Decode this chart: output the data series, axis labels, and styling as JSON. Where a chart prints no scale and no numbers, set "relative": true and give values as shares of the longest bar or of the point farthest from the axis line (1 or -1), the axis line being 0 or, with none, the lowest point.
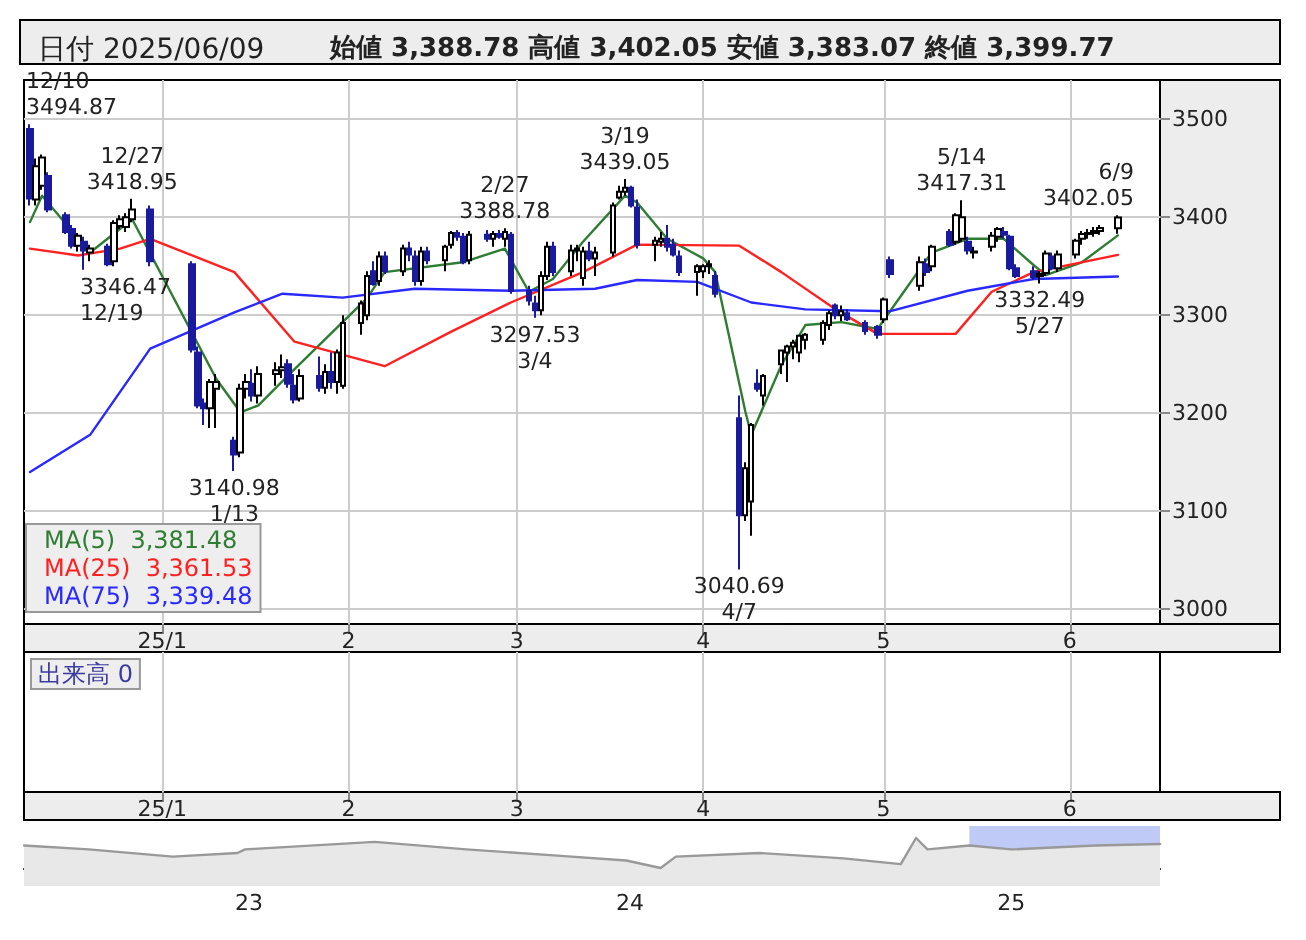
{
  "chart_data": [
    {
      "type": "candlestick",
      "title": "日付 2025/06/09",
      "subtitle": "始値 3,388.78 高値 3,402.05 安値 3,383.07 終値 3,399.77",
      "colors": [
        "#1a1a9c",
        "#ffffff",
        "#ffffff",
        "#1a1a9c",
        "#1a1a9c",
        "#1a1a9c",
        "#ffffff",
        "#1a1a9c",
        "#ffffff",
        "#1a1a9c",
        "#ffffff",
        "#ffffff",
        "#ffffff",
        "#ffffff",
        "#1a1a9c",
        "#1a1a9c",
        "#1a1a9c",
        "#1a1a9c",
        "#ffffff",
        "#ffffff",
        "#1a1a9c",
        "#ffffff",
        "#ffffff",
        "#1a1a9c",
        "#ffffff",
        "#ffffff",
        "#ffffff",
        "#1a1a9c",
        "#1a1a9c",
        "#ffffff",
        "#1a1a9c",
        "#ffffff",
        "#1a1a9c",
        "#ffffff",
        "#ffffff",
        "#ffffff",
        "#ffffff",
        "#1a1a9c",
        "#ffffff",
        "#1a1a9c",
        "#ffffff",
        "#1a1a9c",
        "#1a1a9c",
        "#ffffff",
        "#1a1a9c",
        "#ffffff",
        "#ffffff",
        "#1a1a9c",
        "#1a1a9c",
        "#ffffff",
        "#1a1a9c",
        "#ffffff",
        "#1a1a9c",
        "#ffffff",
        "#1a1a9c",
        "#1a1a9c",
        "#1a1a9c",
        "#ffffff",
        "#ffffff",
        "#1a1a9c",
        "#ffffff",
        "#ffffff",
        "#ffffff",
        "#1a1a9c",
        "#ffffff",
        "#ffffff",
        "#ffffff",
        "#ffffff",
        "#1a1a9c",
        "#1a1a9c",
        "#ffffff",
        "#ffffff",
        "#1a1a9c",
        "#1a1a9c",
        "#1a1a9c",
        "#ffffff",
        "#ffffff",
        "#ffffff",
        "#1a1a9c",
        "#1a1a9c",
        "#ffffff",
        "#ffffff",
        "#1a1a9c",
        "#ffffff",
        "#ffffff",
        "#ffffff",
        "#ffffff",
        "#ffffff",
        "#ffffff",
        "#ffffff",
        "#ffffff",
        "#1a1a9c",
        "#ffffff",
        "#1a1a9c",
        "#1a1a9c",
        "#1a1a9c",
        "#ffffff",
        "#1a1a9c",
        "#ffffff",
        "#1a1a9c",
        "#ffffff",
        "#1a1a9c",
        "#ffffff",
        "#ffffff",
        "#1a1a9c",
        "#ffffff",
        "#ffffff",
        "#ffffff",
        "#1a1a9c",
        "#1a1a9c",
        "#1a1a9c",
        "#1a1a9c",
        "#ffffff",
        "#ffffff",
        "#1a1a9c",
        "#ffffff",
        "#ffffff",
        "#ffffff",
        "#ffffff",
        "#ffffff",
        "#ffffff",
        "#ffffff"
      ],
      "x": [
        "2024-12-10",
        "2024-12-11",
        "2024-12-12",
        "2024-12-13",
        "2024-12-16",
        "2024-12-17",
        "2024-12-18",
        "2024-12-19",
        "2024-12-20",
        "2024-12-23",
        "2024-12-24",
        "2024-12-25",
        "2024-12-26",
        "2024-12-27",
        "2024-12-30",
        "2025-01-06",
        "2025-01-07",
        "2025-01-08",
        "2025-01-09",
        "2025-01-10",
        "2025-01-13",
        "2025-01-14",
        "2025-01-15",
        "2025-01-16",
        "2025-01-17",
        "2025-01-20",
        "2025-01-21",
        "2025-01-22",
        "2025-01-23",
        "2025-01-24",
        "2025-01-27",
        "2025-01-28",
        "2025-01-29",
        "2025-01-30",
        "2025-01-31",
        "2025-02-03",
        "2025-02-04",
        "2025-02-05",
        "2025-02-06",
        "2025-02-07",
        "2025-02-10",
        "2025-02-11",
        "2025-02-12",
        "2025-02-13",
        "2025-02-14",
        "2025-02-17",
        "2025-02-18",
        "2025-02-19",
        "2025-02-20",
        "2025-02-21",
        "2025-02-24",
        "2025-02-25",
        "2025-02-26",
        "2025-02-27",
        "2025-02-28",
        "2025-03-03",
        "2025-03-04",
        "2025-03-05",
        "2025-03-06",
        "2025-03-07",
        "2025-03-10",
        "2025-03-11",
        "2025-03-12",
        "2025-03-13",
        "2025-03-14",
        "2025-03-17",
        "2025-03-18",
        "2025-03-19",
        "2025-03-20",
        "2025-03-21",
        "2025-03-24",
        "2025-03-25",
        "2025-03-26",
        "2025-03-27",
        "2025-03-28",
        "2025-03-31",
        "2025-04-01",
        "2025-04-02",
        "2025-04-03",
        "2025-04-07",
        "2025-04-08",
        "2025-04-09",
        "2025-04-10",
        "2025-04-11",
        "2025-04-14",
        "2025-04-15",
        "2025-04-16",
        "2025-04-17",
        "2025-04-18",
        "2025-04-21",
        "2025-04-22",
        "2025-04-23",
        "2025-04-24",
        "2025-04-25",
        "2025-04-28",
        "2025-04-30",
        "2025-05-01",
        "2025-05-02",
        "2025-05-07",
        "2025-05-08",
        "2025-05-09",
        "2025-05-12",
        "2025-05-13",
        "2025-05-14",
        "2025-05-15",
        "2025-05-16",
        "2025-05-19",
        "2025-05-20",
        "2025-05-21",
        "2025-05-22",
        "2025-05-23",
        "2025-05-26",
        "2025-05-27",
        "2025-05-28",
        "2025-05-29",
        "2025-05-30",
        "2025-06-02",
        "2025-06-03",
        "2025-06-04",
        "2025-06-05",
        "2025-06-06",
        "2025-06-09"
      ],
      "ohlc": [
        [
          3490,
          3494.87,
          3412,
          3419
        ],
        [
          3418,
          3460,
          3412,
          3452
        ],
        [
          3432,
          3464,
          3428,
          3461
        ],
        [
          3442,
          3446,
          3405,
          3408
        ],
        [
          3402,
          3405,
          3383,
          3385
        ],
        [
          3388,
          3392,
          3368,
          3371
        ],
        [
          3371,
          3384,
          3365,
          3381
        ],
        [
          3375,
          3380,
          3346.47,
          3366
        ],
        [
          3364,
          3372,
          3355,
          3368
        ],
        [
          3370,
          3373,
          3350,
          3352
        ],
        [
          3355,
          3397,
          3350,
          3394
        ],
        [
          3391,
          3402,
          3388,
          3398
        ],
        [
          3390,
          3404,
          3385,
          3400
        ],
        [
          3398,
          3418.95,
          3395,
          3408
        ],
        [
          3408,
          3412,
          3350,
          3355
        ],
        [
          3352,
          3355,
          3262,
          3265
        ],
        [
          3262,
          3268,
          3205,
          3208
        ],
        [
          3210,
          3215,
          3188,
          3205
        ],
        [
          3205,
          3235,
          3185,
          3232
        ],
        [
          3225,
          3240,
          3185,
          3232
        ],
        [
          3172,
          3176,
          3140.98,
          3158
        ],
        [
          3160,
          3230,
          3155,
          3225
        ],
        [
          3225,
          3240,
          3215,
          3232
        ],
        [
          3230,
          3245,
          3212,
          3218
        ],
        [
          3218,
          3248,
          3210,
          3240
        ],
        [
          3240,
          3252,
          3228,
          3244
        ],
        [
          3244,
          3260,
          3236,
          3247
        ],
        [
          3250,
          3255,
          3226,
          3230
        ],
        [
          3228,
          3240,
          3210,
          3214
        ],
        [
          3215,
          3245,
          3212,
          3238
        ],
        [
          3238,
          3258,
          3222,
          3226
        ],
        [
          3226,
          3250,
          3220,
          3242
        ],
        [
          3242,
          3262,
          3225,
          3232
        ],
        [
          3232,
          3265,
          3220,
          3262
        ],
        [
          3228,
          3300,
          3225,
          3292
        ],
        [
          3292,
          3315,
          3280,
          3312
        ],
        [
          3300,
          3345,
          3295,
          3340
        ],
        [
          3345,
          3355,
          3330,
          3332
        ],
        [
          3335,
          3365,
          3330,
          3360
        ],
        [
          3360,
          3365,
          3342,
          3345
        ],
        [
          3345,
          3372,
          3340,
          3368
        ],
        [
          3368,
          3375,
          3355,
          3362
        ],
        [
          3360,
          3366,
          3330,
          3335
        ],
        [
          3335,
          3370,
          3330,
          3365
        ],
        [
          3365,
          3370,
          3352,
          3356
        ],
        [
          3356,
          3372,
          3345,
          3370
        ],
        [
          3372,
          3386,
          3368,
          3384
        ],
        [
          3384,
          3387,
          3376,
          3380
        ],
        [
          3380,
          3384,
          3352,
          3354
        ],
        [
          3356,
          3386,
          3352,
          3382
        ],
        [
          3382,
          3387,
          3375,
          3378
        ],
        [
          3378,
          3386,
          3370,
          3383
        ],
        [
          3383,
          3387,
          3378,
          3380
        ],
        [
          3378,
          3388.78,
          3370,
          3385
        ],
        [
          3382,
          3385,
          3322,
          3325
        ],
        [
          3325,
          3330,
          3310,
          3315
        ],
        [
          3312,
          3320,
          3297.53,
          3305
        ],
        [
          3305,
          3345,
          3300,
          3340
        ],
        [
          3340,
          3375,
          3336,
          3370
        ],
        [
          3370,
          3375,
          3340,
          3344
        ],
        [
          3345,
          3372,
          3340,
          3366
        ],
        [
          3366,
          3372,
          3355,
          3368
        ],
        [
          3338,
          3370,
          3330,
          3365
        ],
        [
          3365,
          3375,
          3355,
          3358
        ],
        [
          3358,
          3370,
          3340,
          3364
        ],
        [
          3364,
          3415,
          3360,
          3412
        ],
        [
          3420,
          3432,
          3418,
          3426
        ],
        [
          3426,
          3439.05,
          3422,
          3430
        ],
        [
          3430,
          3432,
          3410,
          3412
        ],
        [
          3410,
          3418,
          3368,
          3372
        ],
        [
          3372,
          3380,
          3355,
          3376
        ],
        [
          3375,
          3385,
          3370,
          3378
        ],
        [
          3378,
          3392,
          3365,
          3370
        ],
        [
          3372,
          3378,
          3360,
          3362
        ],
        [
          3360,
          3366,
          3340,
          3344
        ],
        [
          3344,
          3352,
          3320,
          3350
        ],
        [
          3345,
          3352,
          3338,
          3350
        ],
        [
          3350,
          3356,
          3342,
          3352
        ],
        [
          3340,
          3345,
          3318,
          3322
        ],
        [
          3195,
          3218,
          3040.69,
          3096
        ],
        [
          3096,
          3150,
          3090,
          3144
        ],
        [
          3110,
          3190,
          3075,
          3188
        ],
        [
          3230,
          3245,
          3222,
          3225
        ],
        [
          3218,
          3240,
          3208,
          3238
        ],
        [
          3250,
          3265,
          3240,
          3264
        ],
        [
          3262,
          3270,
          3232,
          3268
        ],
        [
          3268,
          3275,
          3255,
          3272
        ],
        [
          3262,
          3280,
          3252,
          3279
        ],
        [
          3275,
          3282,
          3265,
          3280
        ],
        [
          3275,
          3295,
          3270,
          3292
        ],
        [
          3290,
          3305,
          3285,
          3302
        ],
        [
          3310,
          3312,
          3296,
          3300
        ],
        [
          3300,
          3310,
          3294,
          3304
        ],
        [
          3302,
          3306,
          3294,
          3296
        ],
        [
          3292,
          3295,
          3280,
          3284
        ],
        [
          3288,
          3290,
          3276,
          3280
        ],
        [
          3296,
          3318,
          3292,
          3316
        ],
        [
          3356,
          3360,
          3338,
          3342
        ],
        [
          3330,
          3360,
          3325,
          3354
        ],
        [
          3352,
          3358,
          3340,
          3344
        ],
        [
          3350,
          3372,
          3345,
          3370
        ],
        [
          3385,
          3388,
          3370,
          3372
        ],
        [
          3375,
          3404,
          3372,
          3402
        ],
        [
          3378,
          3417.31,
          3375,
          3400
        ],
        [
          3375,
          3380,
          3362,
          3366
        ],
        [
          3364,
          3370,
          3358,
          3365
        ],
        [
          3370,
          3385,
          3365,
          3381
        ],
        [
          3380,
          3390,
          3375,
          3388
        ],
        [
          3385,
          3390,
          3378,
          3382
        ],
        [
          3380,
          3382,
          3346,
          3348
        ],
        [
          3348,
          3352,
          3338,
          3340
        ],
        [
          3345,
          3350,
          3336,
          3339
        ],
        [
          3340,
          3345,
          3332.49,
          3342
        ],
        [
          3343,
          3366,
          3340,
          3363
        ],
        [
          3360,
          3364,
          3346,
          3348
        ],
        [
          3348,
          3366,
          3344,
          3362
        ],
        [
          3362,
          3378,
          3358,
          3376
        ],
        [
          3378,
          3386,
          3372,
          3383
        ],
        [
          3383,
          3388,
          3378,
          3384
        ],
        [
          3384,
          3390,
          3380,
          3386
        ],
        [
          3386,
          3392,
          3382,
          3389
        ],
        [
          3388.78,
          3402.05,
          3383.07,
          3399.77
        ]
      ],
      "series": [
        {
          "type": "line",
          "name": "MA(5)  3,381.48",
          "color": "#2e7d32",
          "x": [
            "2024-12-10",
            "2024-12-12",
            "2024-12-20",
            "2024-12-27",
            "2025-01-10",
            "2025-01-14",
            "2025-01-17",
            "2025-01-22",
            "2025-02-04",
            "2025-02-07",
            "2025-02-20",
            "2025-02-27",
            "2025-03-03",
            "2025-03-07",
            "2025-03-12",
            "2025-03-19",
            "2025-03-21",
            "2025-03-26",
            "2025-04-01",
            "2025-04-03",
            "2025-04-08",
            "2025-04-09",
            "2025-04-14",
            "2025-04-18",
            "2025-04-24",
            "2025-04-30",
            "2025-05-09",
            "2025-05-15",
            "2025-05-21",
            "2025-05-26",
            "2025-05-28",
            "2025-06-03",
            "2025-06-09"
          ],
          "values": [
            3395,
            3422,
            3364,
            3398,
            3235,
            3201,
            3208,
            3239,
            3317,
            3344,
            3354,
            3368,
            3324,
            3337,
            3375,
            3422,
            3415,
            3378,
            3358,
            3344,
            3202,
            3178,
            3249,
            3290,
            3293,
            3286,
            3364,
            3378,
            3378,
            3351,
            3341,
            3354,
            3381.48
          ]
        },
        {
          "type": "line",
          "name": "MA(25)  3,361.53",
          "color": "#ff2020",
          "x": [
            "2024-12-10",
            "2024-12-18",
            "2024-12-25",
            "2024-12-30",
            "2025-01-13",
            "2025-01-23",
            "2025-02-07",
            "2025-02-18",
            "2025-02-28",
            "2025-03-12",
            "2025-03-21",
            "2025-04-07",
            "2025-04-14",
            "2025-04-23",
            "2025-04-30",
            "2025-05-13",
            "2025-05-19",
            "2025-05-26",
            "2025-06-09"
          ],
          "values": [
            3368,
            3361,
            3368,
            3378,
            3344,
            3273,
            3248,
            3283,
            3313,
            3344,
            3372,
            3371,
            3344,
            3306,
            3281,
            3281,
            3324,
            3344,
            3361.53
          ]
        },
        {
          "type": "line",
          "name": "MA(75)  3,339.48",
          "color": "#2828ff",
          "x": [
            "2024-12-10",
            "2024-12-20",
            "2024-12-30",
            "2025-01-13",
            "2025-01-21",
            "2025-01-31",
            "2025-02-12",
            "2025-02-28",
            "2025-03-14",
            "2025-03-21",
            "2025-03-31",
            "2025-04-09",
            "2025-04-18",
            "2025-05-02",
            "2025-05-15",
            "2025-05-26",
            "2025-06-09"
          ],
          "values": [
            3140,
            3178,
            3266,
            3303,
            3322,
            3318,
            3327,
            3325,
            3327,
            3336,
            3334,
            3313,
            3306,
            3304,
            3325,
            3337,
            3339.48
          ]
        }
      ],
      "xlim": [
        "2024-12-09",
        "2025-06-16"
      ],
      "xticks": [
        {
          "value": "2025-01-01",
          "label": "25/1"
        },
        {
          "value": "2025-02-01",
          "label": "2"
        },
        {
          "value": "2025-03-01",
          "label": "3"
        },
        {
          "value": "2025-04-01",
          "label": "4"
        },
        {
          "value": "2025-05-01",
          "label": "5"
        },
        {
          "value": "2025-06-01",
          "label": "6"
        }
      ],
      "ylim": [
        2985,
        3540
      ],
      "yticks": [
        3000,
        3100,
        3200,
        3300,
        3400,
        3500
      ],
      "grid": true,
      "legend": "bottom left",
      "annotations": [
        {
          "text": "12/10\n3494.87",
          "x": "2024-12-10",
          "y": 3494.87
        },
        {
          "text": "12/27\n3418.95",
          "x": "2024-12-27",
          "y": 3418.95
        },
        {
          "text": "3346.47\n12/19",
          "x": "2024-12-19",
          "y": 3346.47
        },
        {
          "text": "3140.98\n1/13",
          "x": "2025-01-13",
          "y": 3140.98
        },
        {
          "text": "2/27\n3388.78",
          "x": "2025-02-27",
          "y": 3388.78
        },
        {
          "text": "3297.53\n3/4",
          "x": "2025-03-04",
          "y": 3297.53
        },
        {
          "text": "3/19\n3439.05",
          "x": "2025-03-19",
          "y": 3439.05
        },
        {
          "text": "3040.69\n4/7",
          "x": "2025-04-07",
          "y": 3040.69
        },
        {
          "text": "5/14\n3417.31",
          "x": "2025-05-14",
          "y": 3417.31
        },
        {
          "text": "3332.49\n5/27",
          "x": "2025-05-27",
          "y": 3332.49
        },
        {
          "text": "6/9\n3402.05",
          "x": "2025-06-09",
          "y": 3402.05
        },
        "出来高 0"
      ]
    },
    {
      "type": "area",
      "relative": true,
      "color": "#999999",
      "x": [
        2022.41,
        2022.58,
        2022.8,
        2022.97,
        2022.99,
        2023.33,
        2023.57,
        2023.79,
        2023.99,
        2024.08,
        2024.12,
        2024.34,
        2024.56,
        2024.71,
        2024.75,
        2024.78,
        2024.89,
        2025.0,
        2025.22,
        2025.39
      ],
      "values": [
        0.75,
        0.62,
        0.38,
        0.5,
        0.62,
        0.87,
        0.62,
        0.43,
        0.25,
        0,
        0.38,
        0.5,
        0.32,
        0.13,
        1,
        0.62,
        0.75,
        0.62,
        0.75,
        0.8
      ],
      "xlim": [
        2022.41,
        2025.39
      ],
      "xticks": [
        {
          "value": 2023,
          "label": "23"
        },
        {
          "value": 2024,
          "label": "24"
        },
        {
          "value": 2025,
          "label": "25"
        }
      ],
      "tick_labels": "x",
      "bands": [
        {
          "axis": "x",
          "from": 2024.89,
          "to": 2025.39,
          "color": "#b8c4f5"
        }
      ]
    }
  ]
}
